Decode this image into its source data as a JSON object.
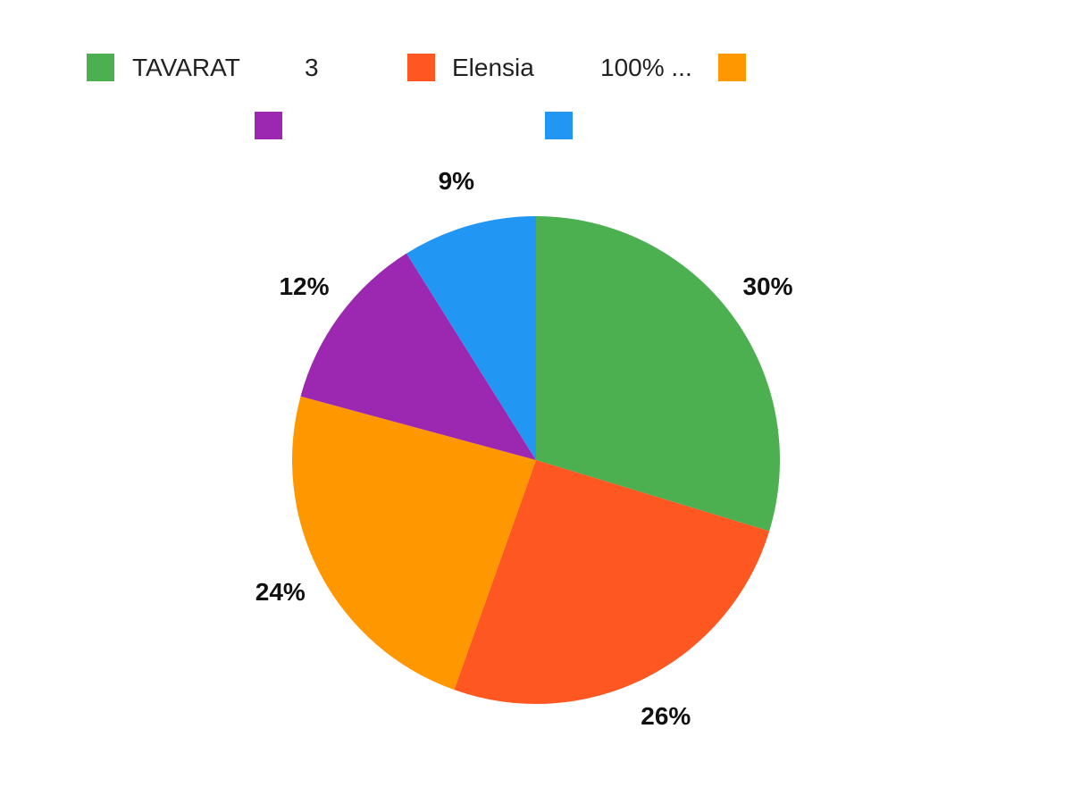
{
  "chart_data": {
    "type": "pie",
    "legend_position": "top",
    "legend": [
      {
        "label": "TAVARAT",
        "color": "#4CAF50"
      },
      {
        "label": "3",
        "color": null
      },
      {
        "label": "Elensia",
        "color": "#FF5722"
      },
      {
        "label": "100% ...",
        "color": null
      },
      {
        "label": "",
        "color": "#FF9800"
      },
      {
        "label": "",
        "color": "#9C27B0"
      },
      {
        "label": "",
        "color": "#2196F3"
      }
    ],
    "slices": [
      {
        "value": 30,
        "label": "30%",
        "color": "#4CAF50"
      },
      {
        "value": 26,
        "label": "26%",
        "color": "#FF5722"
      },
      {
        "value": 24,
        "label": "24%",
        "color": "#FF9800"
      },
      {
        "value": 12,
        "label": "12%",
        "color": "#9C27B0"
      },
      {
        "value": 9,
        "label": "9%",
        "color": "#2196F3"
      }
    ]
  }
}
